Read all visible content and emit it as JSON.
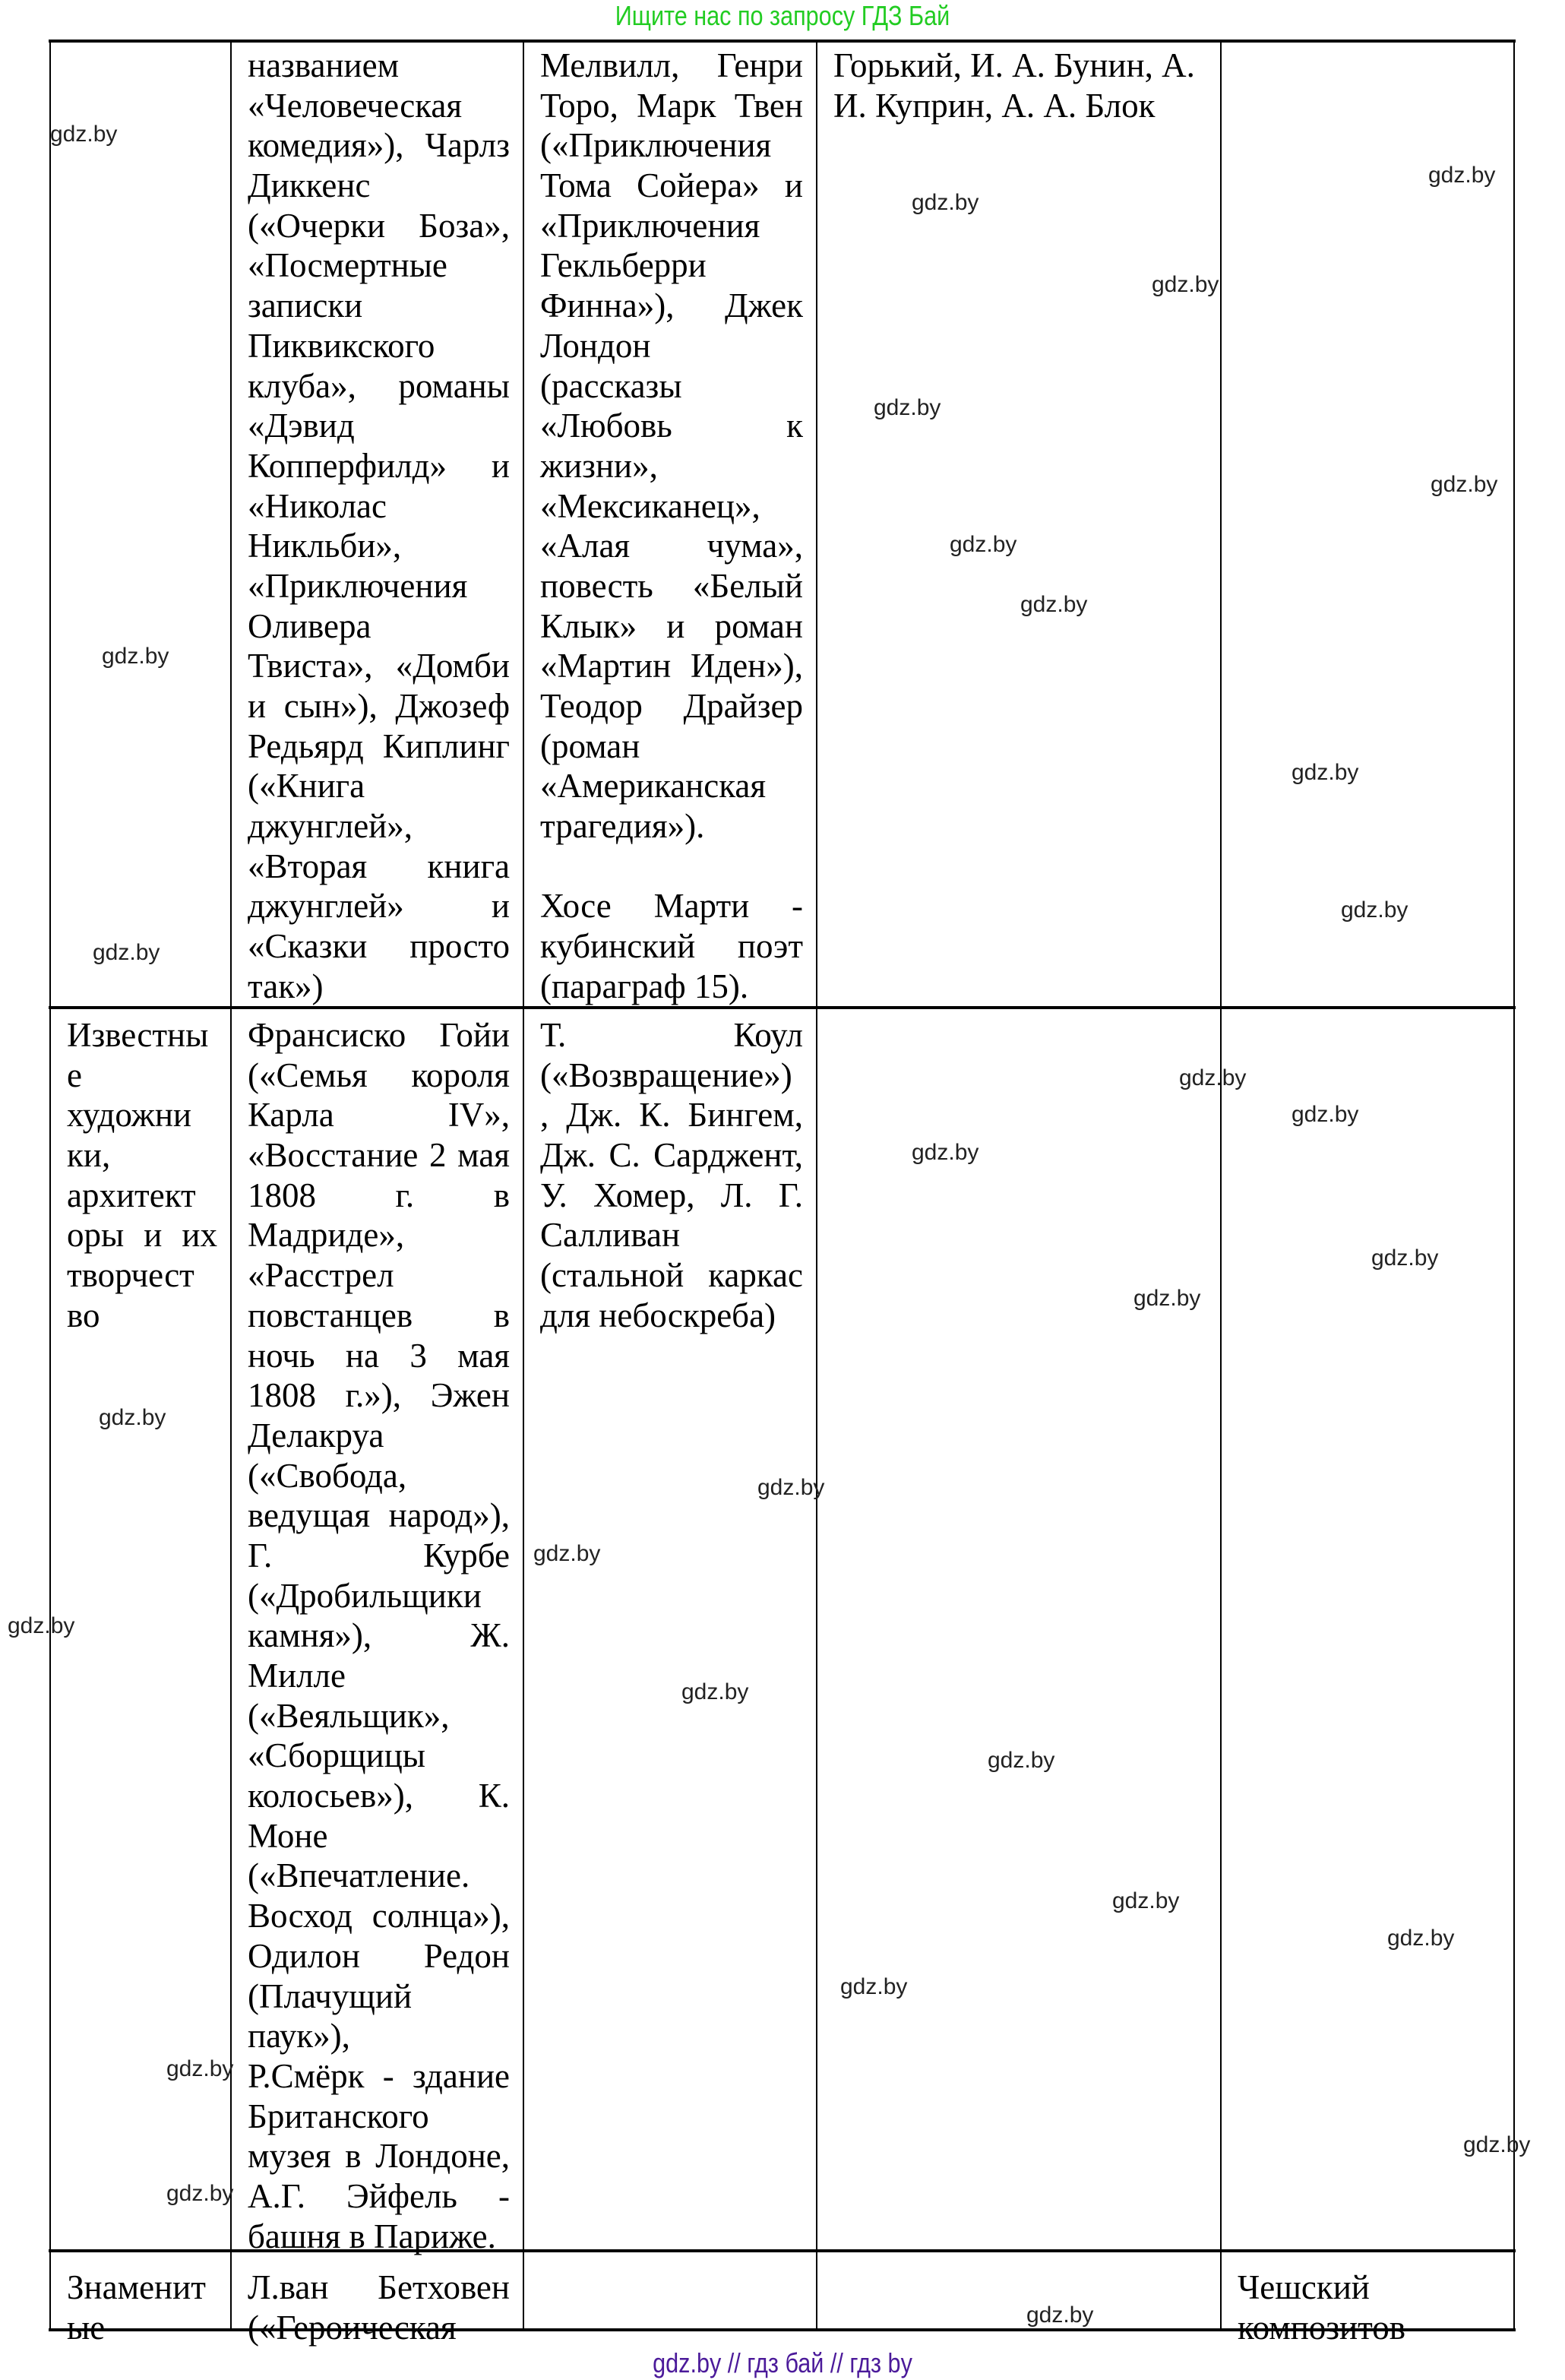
{
  "header": {
    "search_hint": "Ищите нас по запросу ГДЗ Бай"
  },
  "footer": {
    "links": "gdz.by  //  гдз бай  //  гдз by"
  },
  "table": {
    "rows": [
      {
        "cells": [
          [],
          [
            "названием",
            "«Человеческая",
            "комедия»), Чарлз",
            "Диккенс",
            "(«Очерки Боза»,",
            "«Посмертные",
            "записки",
            "Пиквикского",
            "клуба», романы",
            "«Дэвид",
            "Копперфилд» и",
            "«Николас",
            "Никльби»,",
            "«Приключения",
            "Оливера",
            "Твиста», «Домби",
            "и сын»), Джозеф",
            "Редьярд Киплинг",
            "(«Книга",
            "джунглей»,",
            "«Вторая книга",
            "джунглей» и",
            "«Сказки просто",
            "так»)"
          ],
          [
            "Мелвилл, Генри",
            "Торо, Марк Твен",
            "(«Приключения",
            "Тома Сойера» и",
            "«Приключения",
            "Гекльберри",
            "Финна»), Джек",
            "Лондон",
            "(рассказы",
            "«Любовь к",
            "жизни»,",
            "«Мексиканец»,",
            "«Алая чума»,",
            "повесть «Белый",
            "Клык» и роман",
            "«Мартин Иден»),",
            "Теодор Драйзер",
            "(роман",
            "«Американская",
            "трагедия»).",
            "",
            "Хосе Марти -",
            "кубинский поэт",
            "(параграф 15)."
          ],
          [
            "Горький, И. А. Бунин, А.",
            "И. Куприн, А. А. Блок"
          ],
          []
        ]
      },
      {
        "cells": [
          [
            "Известны",
            "е",
            "художни",
            "ки,",
            "архитект",
            "оры и их",
            "творчест",
            "во"
          ],
          [
            "Франсиско Гойи",
            "(«Семья короля",
            "Карла IV»,",
            "«Восстание 2 мая",
            "1808 г. в",
            "Мадриде»,",
            "«Расстрел",
            "повстанцев в",
            "ночь на 3 мая",
            "1808 г.»), Эжен",
            "Делакруа",
            "(«Свобода,",
            "ведущая народ»),",
            "Г. Курбе",
            "(«Дробильщики",
            "камня»), Ж.",
            "Милле",
            "(«Веяльщик»,",
            "«Сборщицы",
            "колосьев»), К.",
            "Моне",
            "(«Впечатление.",
            "Восход солнца»),",
            "Одилон Редон",
            "(Плачущий",
            "паук»),",
            "Р.Смёрк - здание",
            "Британского",
            "музея в Лондоне,",
            "А.Г. Эйфель -",
            "башня в Париже."
          ],
          [
            "Т. Коул",
            "(«Возвращение»)",
            ", Дж. К. Бингем,",
            "Дж. С. Сарджент,",
            "У. Хомер, Л. Г.",
            "Салливан",
            "(стальной каркас",
            "для небоскреба)"
          ],
          [],
          []
        ]
      },
      {
        "cells": [
          [
            "Знаменит",
            "ые"
          ],
          [
            "Л.ван Бетховен",
            "(«Героическая"
          ],
          [],
          [],
          [
            "Чешский",
            "композитов"
          ]
        ]
      }
    ]
  },
  "watermarks": [
    "gdz.by",
    "gdz.by",
    "gdz.by",
    "gdz.by",
    "gdz.by",
    "gdz.by",
    "gdz.by",
    "gdz.by",
    "gdz.by",
    "gdz.by",
    "gdz.by",
    "gdz.by",
    "gdz.by",
    "gdz.by",
    "gdz.by",
    "gdz.by",
    "gdz.by",
    "gdz.by",
    "gdz.by",
    "gdz.by",
    "gdz.by",
    "gdz.by",
    "gdz.by",
    "gdz.by",
    "gdz.by",
    "gdz.by",
    "gdz.by",
    "gdz.by",
    "gdz.by",
    "gdz.by"
  ]
}
